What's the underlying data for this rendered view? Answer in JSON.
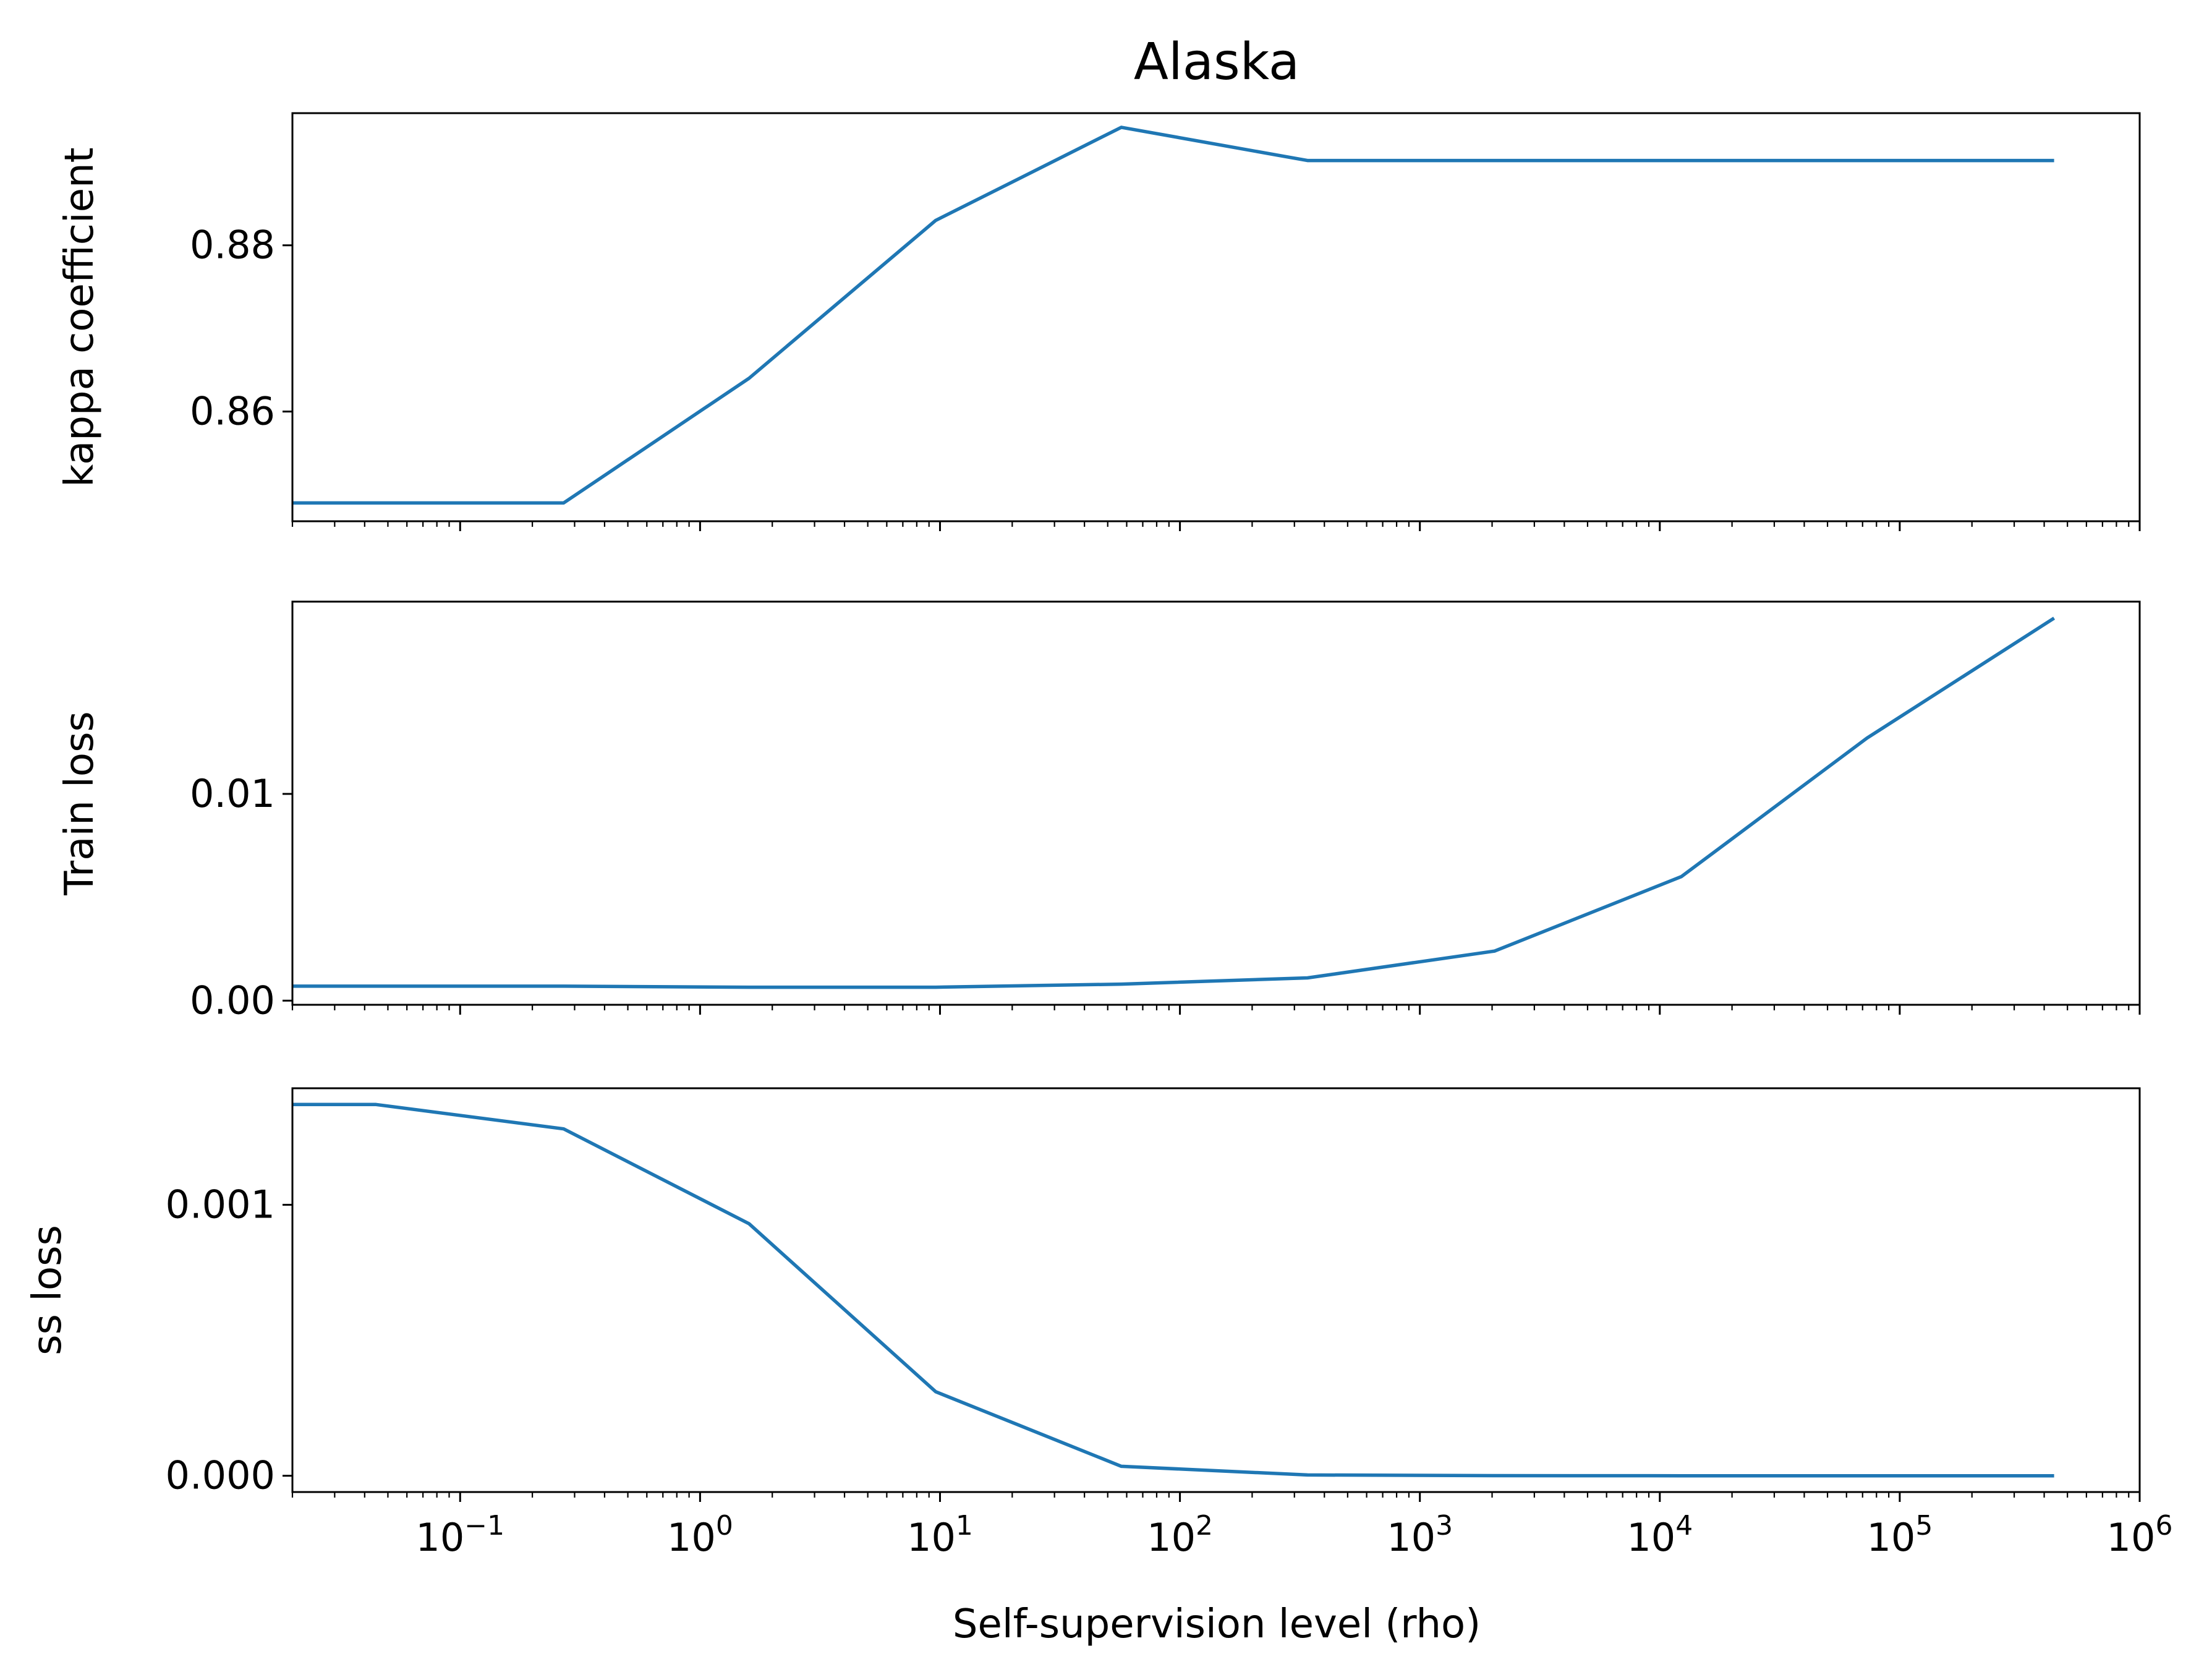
{
  "chart_data": {
    "type": "line",
    "title": "Alaska",
    "xlabel": "Self-supervision level (rho)",
    "xscale": "log",
    "xlim": [
      0.02,
      1000000
    ],
    "x_tick_labels": [
      {
        "value": 0.1,
        "base": "10",
        "exp": "−1"
      },
      {
        "value": 1,
        "base": "10",
        "exp": "0"
      },
      {
        "value": 10,
        "base": "10",
        "exp": "1"
      },
      {
        "value": 100,
        "base": "10",
        "exp": "2"
      },
      {
        "value": 1000,
        "base": "10",
        "exp": "3"
      },
      {
        "value": 10000,
        "base": "10",
        "exp": "4"
      },
      {
        "value": 100000,
        "base": "10",
        "exp": "5"
      },
      {
        "value": 1000000,
        "base": "10",
        "exp": "6"
      }
    ],
    "x": [
      0.02,
      0.0446,
      0.27,
      1.6,
      9.6,
      57,
      340,
      2050,
      12300,
      73000,
      440000
    ],
    "color": "#1f77b4",
    "panels": [
      {
        "ylabel": "kappa coefficient",
        "ylim": [
          0.8468,
          0.8959
        ],
        "yticks": [
          0.86,
          0.88
        ],
        "ytick_labels": [
          "0.86",
          "0.88"
        ],
        "y": [
          0.849,
          0.849,
          0.849,
          0.864,
          0.883,
          0.8942,
          0.8902,
          0.8902,
          0.8902,
          0.8902,
          0.8902
        ]
      },
      {
        "ylabel": "Train loss",
        "ylim": [
          -0.0002,
          0.0193
        ],
        "yticks": [
          0.0,
          0.01
        ],
        "ytick_labels": [
          "0.00",
          "0.01"
        ],
        "y": [
          0.0007,
          0.0007,
          0.0007,
          0.00065,
          0.00065,
          0.0008,
          0.0011,
          0.0024,
          0.006,
          0.0127,
          0.0185
        ]
      },
      {
        "ylabel": "ss loss",
        "ylim": [
          -6e-05,
          0.00143
        ],
        "yticks": [
          0.0,
          0.001
        ],
        "ytick_labels": [
          "0.000",
          "0.001"
        ],
        "y": [
          0.00137,
          0.00137,
          0.00128,
          0.00093,
          0.00031,
          3.5e-05,
          3e-06,
          5e-07,
          0.0,
          0.0,
          0.0
        ]
      }
    ]
  }
}
